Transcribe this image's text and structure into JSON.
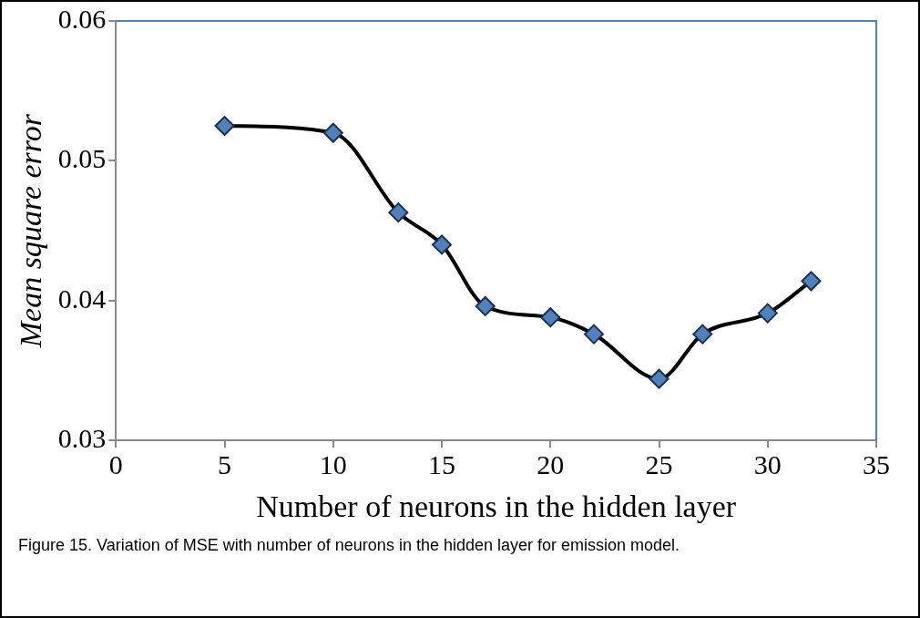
{
  "chart_data": {
    "type": "line",
    "xlabel": "Number of neurons in the hidden layer",
    "ylabel": "Mean square error",
    "x": [
      5,
      10,
      13,
      15,
      17,
      20,
      22,
      25,
      27,
      30,
      32
    ],
    "series": [
      {
        "color": "#000000",
        "values": [
          0.0525,
          0.052,
          0.0463,
          0.044,
          0.0396,
          0.0388,
          0.0376,
          0.0344,
          0.0376,
          0.0391,
          0.0414
        ]
      }
    ],
    "marker": "diamond",
    "line_style": "solid",
    "grid": false,
    "legend": false,
    "xlim": [
      0,
      35
    ],
    "xticks": [
      0,
      5,
      10,
      15,
      20,
      25,
      30,
      35
    ],
    "ylim": [
      0.03,
      0.06
    ],
    "yticks": [
      0.03,
      0.04,
      0.05,
      0.06
    ],
    "annotations": [
      "Figure 15. Variation of MSE with number of neurons in the hidden layer for emission model."
    ]
  }
}
